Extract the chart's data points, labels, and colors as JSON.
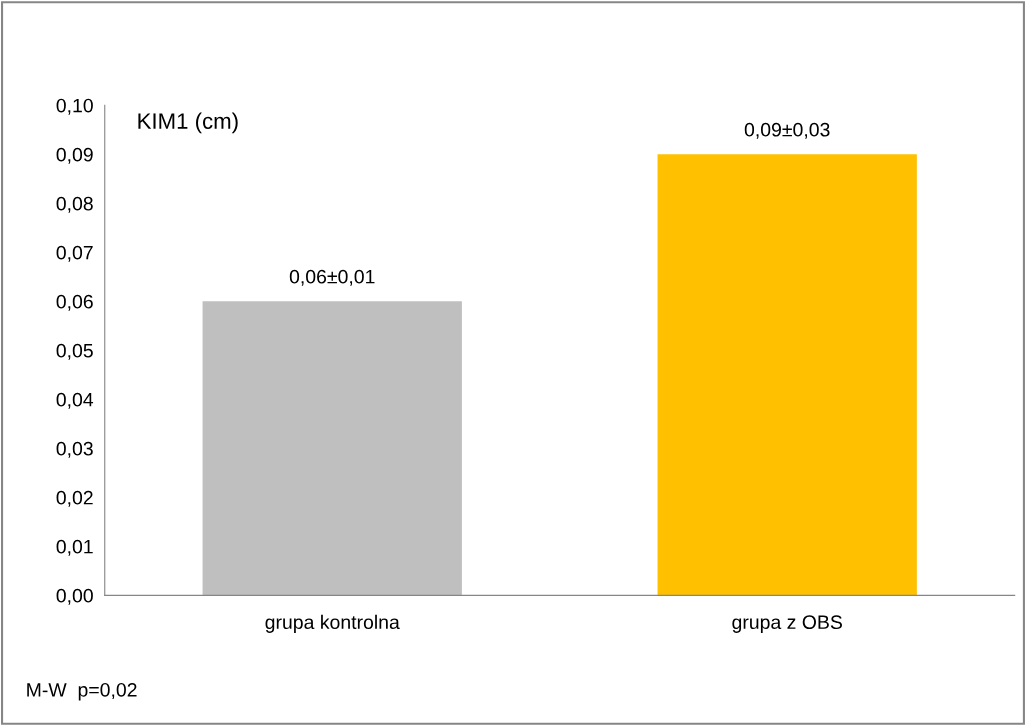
{
  "chart_data": {
    "type": "bar",
    "ylabel": "KIM1 (cm)",
    "categories": [
      "grupa kontrolna",
      "grupa z OBS"
    ],
    "values": [
      0.06,
      0.09
    ],
    "colors": [
      "#bfbfbf",
      "#ffc000"
    ],
    "value_labels": [
      "0,06±0,01",
      "0,09±0,03"
    ],
    "ylim": [
      0,
      0.1
    ],
    "yticks": [
      {
        "value": 0,
        "label": "0,00"
      },
      {
        "value": 0.01,
        "label": "0,01"
      },
      {
        "value": 0.02,
        "label": "0,02"
      },
      {
        "value": 0.03,
        "label": "0,03"
      },
      {
        "value": 0.04,
        "label": "0,04"
      },
      {
        "value": 0.05,
        "label": "0,05"
      },
      {
        "value": 0.06,
        "label": "0,06"
      },
      {
        "value": 0.07,
        "label": "0,07"
      },
      {
        "value": 0.08,
        "label": "0,08"
      },
      {
        "value": 0.09,
        "label": "0,09"
      },
      {
        "value": 0.1,
        "label": "0,10"
      }
    ],
    "annotations": [
      "M-W  p=0,02"
    ]
  }
}
